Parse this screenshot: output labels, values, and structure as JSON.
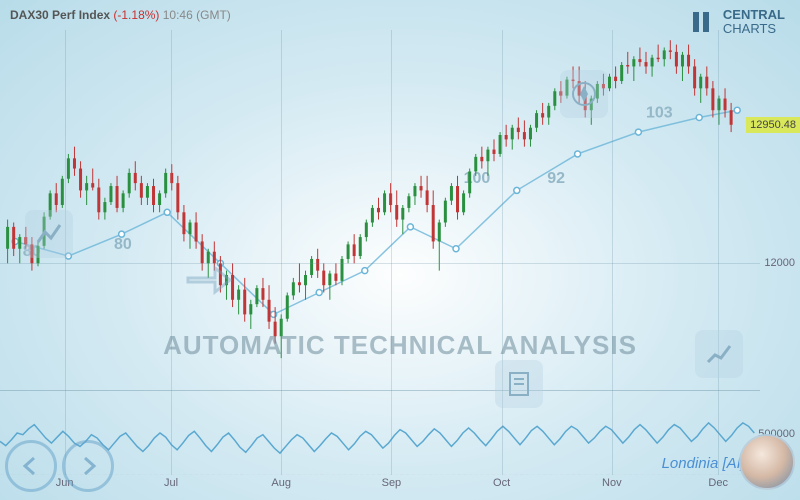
{
  "header": {
    "symbol": "DAX30 Perf Index",
    "pct": "(-1.18%)",
    "time": "10:46 (GMT)"
  },
  "brand": {
    "line1": "CENTRAL",
    "line2": "CHARTS"
  },
  "watermark": "AUTOMATIC TECHNICAL ANALYSIS",
  "londinia": "Londinia [AI]",
  "chart": {
    "ylim": [
      11200,
      13600
    ],
    "yticks": [
      {
        "v": 12000,
        "label": "12000"
      }
    ],
    "price_tag": {
      "v": 12950.48,
      "label": "12950.48"
    },
    "xticks": [
      {
        "p": 0.085,
        "label": "Jun"
      },
      {
        "p": 0.225,
        "label": "Jul"
      },
      {
        "p": 0.37,
        "label": "Aug"
      },
      {
        "p": 0.515,
        "label": "Sep"
      },
      {
        "p": 0.66,
        "label": "Oct"
      },
      {
        "p": 0.805,
        "label": "Nov"
      },
      {
        "p": 0.945,
        "label": "Dec"
      }
    ],
    "candles": [
      [
        0.01,
        12100,
        12300,
        12000,
        12250,
        1
      ],
      [
        0.018,
        12250,
        12280,
        12050,
        12100,
        0
      ],
      [
        0.026,
        12100,
        12200,
        12000,
        12180,
        1
      ],
      [
        0.034,
        12180,
        12250,
        12100,
        12130,
        0
      ],
      [
        0.042,
        12130,
        12180,
        11950,
        12000,
        0
      ],
      [
        0.05,
        12000,
        12150,
        11980,
        12120,
        1
      ],
      [
        0.058,
        12120,
        12350,
        12100,
        12320,
        1
      ],
      [
        0.066,
        12320,
        12500,
        12300,
        12480,
        1
      ],
      [
        0.074,
        12480,
        12550,
        12350,
        12400,
        0
      ],
      [
        0.082,
        12400,
        12600,
        12380,
        12580,
        1
      ],
      [
        0.09,
        12580,
        12750,
        12550,
        12720,
        1
      ],
      [
        0.098,
        12720,
        12800,
        12600,
        12650,
        0
      ],
      [
        0.106,
        12650,
        12700,
        12450,
        12500,
        0
      ],
      [
        0.114,
        12500,
        12600,
        12400,
        12550,
        1
      ],
      [
        0.122,
        12550,
        12650,
        12500,
        12520,
        0
      ],
      [
        0.13,
        12520,
        12580,
        12300,
        12350,
        0
      ],
      [
        0.138,
        12350,
        12450,
        12300,
        12420,
        1
      ],
      [
        0.146,
        12420,
        12550,
        12400,
        12530,
        1
      ],
      [
        0.154,
        12530,
        12600,
        12350,
        12380,
        0
      ],
      [
        0.162,
        12380,
        12500,
        12350,
        12480,
        1
      ],
      [
        0.17,
        12480,
        12650,
        12450,
        12620,
        1
      ],
      [
        0.178,
        12620,
        12700,
        12500,
        12550,
        0
      ],
      [
        0.186,
        12550,
        12600,
        12400,
        12450,
        0
      ],
      [
        0.194,
        12450,
        12550,
        12400,
        12530,
        1
      ],
      [
        0.202,
        12530,
        12580,
        12350,
        12400,
        0
      ],
      [
        0.21,
        12400,
        12500,
        12350,
        12480,
        1
      ],
      [
        0.218,
        12480,
        12650,
        12450,
        12620,
        1
      ],
      [
        0.226,
        12620,
        12680,
        12500,
        12550,
        0
      ],
      [
        0.234,
        12550,
        12600,
        12300,
        12350,
        0
      ],
      [
        0.242,
        12350,
        12400,
        12150,
        12200,
        0
      ],
      [
        0.25,
        12200,
        12300,
        12100,
        12280,
        1
      ],
      [
        0.258,
        12280,
        12350,
        12100,
        12150,
        0
      ],
      [
        0.266,
        12150,
        12200,
        11950,
        12000,
        0
      ],
      [
        0.274,
        12000,
        12100,
        11900,
        12080,
        1
      ],
      [
        0.282,
        12080,
        12150,
        11950,
        12000,
        0
      ],
      [
        0.29,
        12000,
        12050,
        11800,
        11850,
        0
      ],
      [
        0.298,
        11850,
        11950,
        11750,
        11920,
        1
      ],
      [
        0.306,
        11920,
        12000,
        11700,
        11750,
        0
      ],
      [
        0.314,
        11750,
        11850,
        11650,
        11820,
        1
      ],
      [
        0.322,
        11820,
        11900,
        11600,
        11650,
        0
      ],
      [
        0.33,
        11650,
        11750,
        11550,
        11720,
        1
      ],
      [
        0.338,
        11720,
        11850,
        11700,
        11830,
        1
      ],
      [
        0.346,
        11830,
        11900,
        11700,
        11750,
        0
      ],
      [
        0.354,
        11750,
        11850,
        11550,
        11600,
        0
      ],
      [
        0.362,
        11600,
        11700,
        11450,
        11500,
        0
      ],
      [
        0.37,
        11500,
        11650,
        11350,
        11620,
        1
      ],
      [
        0.378,
        11620,
        11800,
        11600,
        11780,
        1
      ],
      [
        0.386,
        11780,
        11900,
        11750,
        11870,
        1
      ],
      [
        0.394,
        11870,
        12000,
        11800,
        11850,
        0
      ],
      [
        0.402,
        11850,
        11950,
        11750,
        11920,
        1
      ],
      [
        0.41,
        11920,
        12050,
        11900,
        12030,
        1
      ],
      [
        0.418,
        12030,
        12100,
        11900,
        11950,
        0
      ],
      [
        0.426,
        11950,
        12000,
        11800,
        11850,
        0
      ],
      [
        0.434,
        11850,
        11950,
        11750,
        11930,
        1
      ],
      [
        0.442,
        11930,
        12000,
        11850,
        11880,
        0
      ],
      [
        0.45,
        11880,
        12050,
        11850,
        12030,
        1
      ],
      [
        0.458,
        12030,
        12150,
        12000,
        12130,
        1
      ],
      [
        0.466,
        12130,
        12200,
        12000,
        12050,
        0
      ],
      [
        0.474,
        12050,
        12200,
        12030,
        12180,
        1
      ],
      [
        0.482,
        12180,
        12300,
        12150,
        12280,
        1
      ],
      [
        0.49,
        12280,
        12400,
        12250,
        12380,
        1
      ],
      [
        0.498,
        12380,
        12450,
        12300,
        12350,
        0
      ],
      [
        0.506,
        12350,
        12500,
        12330,
        12480,
        1
      ],
      [
        0.514,
        12480,
        12550,
        12350,
        12400,
        0
      ],
      [
        0.522,
        12400,
        12500,
        12250,
        12300,
        0
      ],
      [
        0.53,
        12300,
        12400,
        12200,
        12380,
        1
      ],
      [
        0.538,
        12380,
        12480,
        12350,
        12460,
        1
      ],
      [
        0.546,
        12460,
        12550,
        12400,
        12530,
        1
      ],
      [
        0.554,
        12530,
        12600,
        12450,
        12500,
        0
      ],
      [
        0.562,
        12500,
        12600,
        12350,
        12400,
        0
      ],
      [
        0.57,
        12400,
        12500,
        12100,
        12150,
        0
      ],
      [
        0.578,
        12150,
        12300,
        11950,
        12280,
        1
      ],
      [
        0.586,
        12280,
        12450,
        12250,
        12430,
        1
      ],
      [
        0.594,
        12430,
        12550,
        12400,
        12530,
        1
      ],
      [
        0.602,
        12530,
        12600,
        12300,
        12350,
        0
      ],
      [
        0.61,
        12350,
        12500,
        12330,
        12480,
        1
      ],
      [
        0.618,
        12480,
        12650,
        12450,
        12630,
        1
      ],
      [
        0.626,
        12630,
        12750,
        12600,
        12730,
        1
      ],
      [
        0.634,
        12730,
        12800,
        12650,
        12700,
        0
      ],
      [
        0.642,
        12700,
        12800,
        12600,
        12780,
        1
      ],
      [
        0.65,
        12780,
        12850,
        12700,
        12750,
        0
      ],
      [
        0.658,
        12750,
        12900,
        12730,
        12880,
        1
      ],
      [
        0.666,
        12880,
        12950,
        12800,
        12850,
        0
      ],
      [
        0.674,
        12850,
        12950,
        12780,
        12930,
        1
      ],
      [
        0.682,
        12930,
        13000,
        12850,
        12900,
        0
      ],
      [
        0.69,
        12900,
        12980,
        12800,
        12850,
        0
      ],
      [
        0.698,
        12850,
        12950,
        12800,
        12930,
        1
      ],
      [
        0.706,
        12930,
        13050,
        12900,
        13030,
        1
      ],
      [
        0.714,
        13030,
        13100,
        12950,
        13000,
        0
      ],
      [
        0.722,
        13000,
        13100,
        12950,
        13080,
        1
      ],
      [
        0.73,
        13080,
        13200,
        13050,
        13180,
        1
      ],
      [
        0.738,
        13180,
        13250,
        13100,
        13150,
        0
      ],
      [
        0.746,
        13150,
        13280,
        13130,
        13260,
        1
      ],
      [
        0.754,
        13260,
        13350,
        13200,
        13250,
        0
      ],
      [
        0.762,
        13250,
        13350,
        13100,
        13150,
        0
      ],
      [
        0.77,
        13150,
        13250,
        13000,
        13050,
        0
      ],
      [
        0.778,
        13050,
        13150,
        12950,
        13130,
        1
      ],
      [
        0.786,
        13130,
        13250,
        13100,
        13230,
        1
      ],
      [
        0.794,
        13230,
        13300,
        13150,
        13200,
        0
      ],
      [
        0.802,
        13200,
        13300,
        13180,
        13280,
        1
      ],
      [
        0.81,
        13280,
        13350,
        13200,
        13250,
        0
      ],
      [
        0.818,
        13250,
        13380,
        13230,
        13360,
        1
      ],
      [
        0.826,
        13360,
        13450,
        13300,
        13350,
        0
      ],
      [
        0.834,
        13350,
        13420,
        13250,
        13400,
        1
      ],
      [
        0.842,
        13400,
        13480,
        13350,
        13380,
        0
      ],
      [
        0.85,
        13380,
        13450,
        13300,
        13350,
        0
      ],
      [
        0.858,
        13350,
        13430,
        13280,
        13410,
        1
      ],
      [
        0.866,
        13410,
        13500,
        13380,
        13400,
        0
      ],
      [
        0.874,
        13400,
        13480,
        13350,
        13460,
        1
      ],
      [
        0.882,
        13460,
        13530,
        13400,
        13450,
        0
      ],
      [
        0.89,
        13450,
        13500,
        13300,
        13350,
        0
      ],
      [
        0.898,
        13350,
        13450,
        13250,
        13430,
        1
      ],
      [
        0.906,
        13430,
        13500,
        13300,
        13350,
        0
      ],
      [
        0.914,
        13350,
        13400,
        13150,
        13200,
        0
      ],
      [
        0.922,
        13200,
        13300,
        13100,
        13280,
        1
      ],
      [
        0.93,
        13280,
        13350,
        13150,
        13200,
        0
      ],
      [
        0.938,
        13200,
        13250,
        13000,
        13050,
        0
      ],
      [
        0.946,
        13050,
        13150,
        12950,
        13130,
        1
      ],
      [
        0.954,
        13130,
        13200,
        13000,
        13050,
        0
      ],
      [
        0.962,
        13050,
        13100,
        12900,
        12950,
        0
      ]
    ],
    "overlay_line": [
      [
        0.02,
        12150
      ],
      [
        0.09,
        12050
      ],
      [
        0.16,
        12200
      ],
      [
        0.22,
        12350
      ],
      [
        0.29,
        12000
      ],
      [
        0.36,
        11650
      ],
      [
        0.42,
        11800
      ],
      [
        0.48,
        11950
      ],
      [
        0.54,
        12250
      ],
      [
        0.6,
        12100
      ],
      [
        0.68,
        12500
      ],
      [
        0.76,
        12750
      ],
      [
        0.84,
        12900
      ],
      [
        0.92,
        13000
      ],
      [
        0.97,
        13050
      ]
    ],
    "overlay_labels": [
      {
        "p": 0.03,
        "v": 12050,
        "t": "80"
      },
      {
        "p": 0.15,
        "v": 12100,
        "t": "80"
      },
      {
        "p": 0.61,
        "v": 12550,
        "t": "100"
      },
      {
        "p": 0.72,
        "v": 12550,
        "t": "92"
      },
      {
        "p": 0.85,
        "v": 13000,
        "t": "103"
      }
    ],
    "colors": {
      "up": "#2a9040",
      "down": "#c03535",
      "line": "#6ab5d8",
      "overlay_text": "#95b8c8"
    }
  },
  "volume": {
    "max": 900000,
    "label": "500000",
    "bars": [
      320,
      280,
      410,
      350,
      300,
      450,
      520,
      380,
      290,
      340,
      420,
      480,
      310,
      260,
      390,
      440,
      370,
      290,
      410,
      500,
      350,
      280,
      330,
      460,
      390,
      310,
      270,
      420,
      480,
      360,
      290,
      340,
      410,
      500,
      370,
      310,
      450,
      530,
      380,
      290,
      350,
      440,
      480,
      320,
      270,
      390,
      460,
      410,
      330,
      290,
      380,
      500,
      430,
      310,
      270,
      410,
      480,
      360,
      300,
      350,
      440,
      520,
      390,
      280,
      330,
      470,
      510,
      370,
      290,
      360,
      430,
      490,
      340,
      260,
      380,
      450,
      400,
      310,
      270,
      390,
      460,
      530,
      380,
      290,
      340,
      420,
      490,
      360,
      300,
      370,
      440,
      500,
      350,
      270,
      410,
      480,
      390,
      310,
      280,
      400,
      470,
      530,
      360,
      290,
      350,
      430,
      500,
      370,
      300,
      380,
      450,
      510,
      340,
      260,
      400,
      470,
      390,
      310,
      280,
      410,
      480,
      540,
      370,
      300,
      350,
      440,
      500,
      360,
      290,
      380,
      460,
      520,
      340
    ],
    "osc": [
      40,
      35,
      42,
      50,
      48,
      55,
      60,
      52,
      44,
      38,
      45,
      52,
      46,
      38,
      34,
      40,
      48,
      44,
      36,
      30,
      38,
      46,
      50,
      42,
      34,
      28,
      35,
      44,
      50,
      45,
      36,
      30,
      38,
      47,
      52,
      44,
      35,
      28,
      36,
      45,
      50,
      42,
      33,
      27,
      35,
      44,
      48,
      40,
      32,
      26,
      34,
      42,
      48,
      44,
      36,
      28,
      35,
      43,
      50,
      46,
      38,
      30,
      37,
      46,
      52,
      48,
      40,
      32,
      38,
      47,
      54,
      50,
      42,
      34,
      40,
      48,
      55,
      50,
      42,
      34,
      41,
      50,
      56,
      50,
      42,
      35,
      43,
      52,
      58,
      52,
      44,
      36,
      44,
      53,
      58,
      52,
      44,
      36,
      43,
      52,
      58,
      54,
      46,
      38,
      44,
      52,
      58,
      54,
      46,
      38,
      45,
      54,
      60,
      54,
      46,
      38,
      45,
      54,
      60,
      56,
      48,
      40,
      46,
      55,
      62,
      56,
      48,
      40,
      47,
      56,
      62,
      58,
      50
    ],
    "osc_color": "#5aa8d0"
  }
}
